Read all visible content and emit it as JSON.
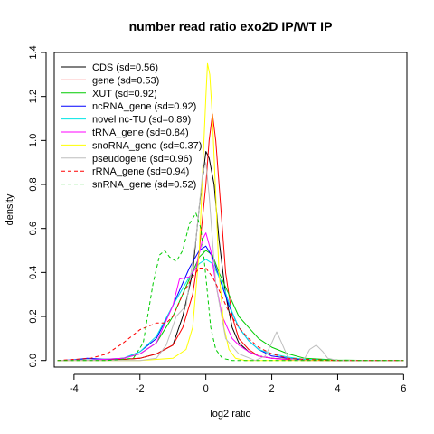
{
  "chart_data": {
    "type": "line",
    "title": "number read ratio exo2D IP/WT IP",
    "xlabel": "log2 ratio",
    "ylabel": "density",
    "xlim": [
      -4.6,
      6.1
    ],
    "ylim": [
      -0.03,
      1.4
    ],
    "x_ticks": [
      -4,
      -2,
      0,
      2,
      4,
      6
    ],
    "y_ticks": [
      0.0,
      0.2,
      0.4,
      0.6,
      0.8,
      1.0,
      1.2,
      1.4
    ],
    "legend_position": "top-left",
    "series": [
      {
        "name": "CDS (sd=0.56)",
        "color": "#000000",
        "dash": "solid",
        "x": [
          -4.5,
          -3.5,
          -2.5,
          -2.0,
          -1.5,
          -1.0,
          -0.7,
          -0.4,
          -0.2,
          0.0,
          0.1,
          0.25,
          0.4,
          0.6,
          0.8,
          1.0,
          1.3,
          1.6,
          2.0,
          2.5,
          3.0,
          4.0,
          5.0,
          6.0
        ],
        "y": [
          0.0,
          0.002,
          0.005,
          0.01,
          0.03,
          0.07,
          0.2,
          0.4,
          0.7,
          0.95,
          0.92,
          0.8,
          0.55,
          0.3,
          0.15,
          0.08,
          0.04,
          0.02,
          0.01,
          0.005,
          0.002,
          0.0,
          0.0,
          0.0
        ]
      },
      {
        "name": "gene (sd=0.53)",
        "color": "#ff0000",
        "dash": "solid",
        "x": [
          -4.5,
          -3.5,
          -2.5,
          -2.0,
          -1.5,
          -1.0,
          -0.7,
          -0.4,
          -0.2,
          0.0,
          0.1,
          0.2,
          0.3,
          0.45,
          0.6,
          0.8,
          1.0,
          1.3,
          1.6,
          2.0,
          2.5,
          3.0,
          4.0,
          5.0,
          6.0
        ],
        "y": [
          0.0,
          0.002,
          0.005,
          0.01,
          0.03,
          0.07,
          0.15,
          0.3,
          0.5,
          0.8,
          1.0,
          1.12,
          1.0,
          0.7,
          0.4,
          0.2,
          0.1,
          0.05,
          0.02,
          0.01,
          0.005,
          0.002,
          0.0,
          0.0,
          0.0
        ]
      },
      {
        "name": "XUT (sd=0.92)",
        "color": "#00cc00",
        "dash": "solid",
        "x": [
          -4.5,
          -3.5,
          -2.5,
          -2.0,
          -1.5,
          -1.0,
          -0.5,
          -0.2,
          0.0,
          0.2,
          0.4,
          0.7,
          1.0,
          1.3,
          1.6,
          2.0,
          2.5,
          3.0,
          4.0,
          5.0,
          6.0
        ],
        "y": [
          0.0,
          0.003,
          0.01,
          0.03,
          0.08,
          0.2,
          0.37,
          0.47,
          0.5,
          0.48,
          0.4,
          0.3,
          0.2,
          0.15,
          0.1,
          0.06,
          0.03,
          0.01,
          0.002,
          0.0,
          0.0
        ]
      },
      {
        "name": "ncRNA_gene (sd=0.92)",
        "color": "#0000ff",
        "dash": "solid",
        "x": [
          -4.5,
          -4.0,
          -3.6,
          -3.0,
          -2.5,
          -2.0,
          -1.5,
          -1.0,
          -0.5,
          -0.2,
          0.0,
          0.2,
          0.4,
          0.7,
          1.0,
          1.3,
          1.6,
          2.0,
          2.5,
          3.0,
          4.0,
          5.0,
          6.0
        ],
        "y": [
          0.0,
          0.003,
          0.01,
          0.005,
          0.01,
          0.04,
          0.1,
          0.25,
          0.42,
          0.5,
          0.52,
          0.47,
          0.38,
          0.25,
          0.15,
          0.09,
          0.05,
          0.02,
          0.01,
          0.003,
          0.0,
          0.0,
          0.0
        ]
      },
      {
        "name": "novel nc-TU (sd=0.89)",
        "color": "#00e5e5",
        "dash": "solid",
        "x": [
          -4.5,
          -3.5,
          -2.5,
          -2.0,
          -1.5,
          -1.0,
          -0.5,
          -0.2,
          0.0,
          0.2,
          0.5,
          0.8,
          1.0,
          1.3,
          1.6,
          2.0,
          2.5,
          3.0,
          4.0,
          5.0,
          6.0
        ],
        "y": [
          0.0,
          0.003,
          0.01,
          0.04,
          0.11,
          0.25,
          0.38,
          0.44,
          0.46,
          0.44,
          0.35,
          0.22,
          0.15,
          0.09,
          0.05,
          0.03,
          0.015,
          0.005,
          0.0,
          0.0,
          0.0
        ]
      },
      {
        "name": "tRNA_gene (sd=0.84)",
        "color": "#ff00ff",
        "dash": "solid",
        "x": [
          -4.5,
          -3.5,
          -2.5,
          -2.0,
          -1.5,
          -1.0,
          -0.8,
          -0.5,
          -0.3,
          -0.1,
          0.0,
          0.15,
          0.3,
          0.5,
          0.8,
          1.0,
          1.3,
          1.6,
          2.0,
          2.5,
          3.0,
          4.0,
          5.0,
          6.0
        ],
        "y": [
          0.0,
          0.002,
          0.01,
          0.03,
          0.08,
          0.25,
          0.37,
          0.38,
          0.42,
          0.55,
          0.58,
          0.5,
          0.35,
          0.2,
          0.1,
          0.07,
          0.04,
          0.02,
          0.01,
          0.003,
          0.0,
          0.0,
          0.0,
          0.0
        ]
      },
      {
        "name": "snoRNA_gene (sd=0.37)",
        "color": "#ffff00",
        "dash": "solid",
        "x": [
          -4.5,
          -2.0,
          -1.0,
          -0.6,
          -0.4,
          -0.2,
          -0.1,
          0.0,
          0.05,
          0.12,
          0.2,
          0.3,
          0.4,
          0.55,
          0.7,
          0.9,
          1.2,
          2.0,
          6.0
        ],
        "y": [
          0.0,
          0.0,
          0.01,
          0.05,
          0.15,
          0.5,
          0.85,
          1.2,
          1.35,
          1.3,
          1.1,
          0.75,
          0.4,
          0.15,
          0.05,
          0.01,
          0.0,
          0.0,
          0.0
        ]
      },
      {
        "name": "pseudogene (sd=0.96)",
        "color": "#bebebe",
        "dash": "solid",
        "x": [
          -4.5,
          -2.0,
          -1.5,
          -1.2,
          -0.9,
          -0.6,
          -0.3,
          -0.1,
          0.0,
          0.1,
          0.3,
          0.6,
          1.0,
          1.5,
          1.8,
          2.0,
          2.15,
          2.3,
          2.5,
          2.8,
          3.0,
          3.15,
          3.35,
          3.55,
          3.7,
          4.0,
          5.0,
          6.0
        ],
        "y": [
          0.0,
          0.0,
          0.01,
          0.07,
          0.2,
          0.25,
          0.55,
          0.85,
          0.9,
          0.75,
          0.35,
          0.1,
          0.03,
          0.0,
          0.02,
          0.08,
          0.13,
          0.08,
          0.01,
          0.0,
          0.01,
          0.05,
          0.07,
          0.04,
          0.01,
          0.0,
          0.0,
          0.0
        ]
      },
      {
        "name": "rRNA_gene (sd=0.94)",
        "color": "#ff0000",
        "dash": "dashed",
        "x": [
          -4.5,
          -3.5,
          -3.0,
          -2.5,
          -2.0,
          -1.5,
          -1.2,
          -1.0,
          -0.7,
          -0.4,
          -0.2,
          0.0,
          0.2,
          0.4,
          0.7,
          1.0,
          1.3,
          1.6,
          2.0,
          2.5,
          3.0,
          4.0,
          5.0,
          6.0
        ],
        "y": [
          0.0,
          0.01,
          0.03,
          0.08,
          0.14,
          0.17,
          0.17,
          0.2,
          0.3,
          0.38,
          0.42,
          0.42,
          0.38,
          0.32,
          0.22,
          0.15,
          0.1,
          0.06,
          0.03,
          0.01,
          0.005,
          0.0,
          0.0,
          0.0
        ]
      },
      {
        "name": "snRNA_gene (sd=0.52)",
        "color": "#00cc00",
        "dash": "dashed",
        "x": [
          -4.5,
          -3.0,
          -2.2,
          -1.9,
          -1.6,
          -1.4,
          -1.25,
          -1.1,
          -0.9,
          -0.7,
          -0.5,
          -0.3,
          -0.15,
          0.0,
          0.15,
          0.3,
          0.5,
          0.8,
          1.2,
          2.0,
          6.0
        ],
        "y": [
          0.0,
          0.0,
          0.01,
          0.08,
          0.35,
          0.48,
          0.5,
          0.47,
          0.45,
          0.5,
          0.62,
          0.67,
          0.6,
          0.38,
          0.15,
          0.05,
          0.01,
          0.0,
          0.0,
          0.0,
          0.0
        ]
      }
    ]
  }
}
